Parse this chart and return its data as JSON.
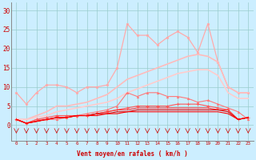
{
  "x": [
    0,
    1,
    2,
    3,
    4,
    5,
    6,
    7,
    8,
    9,
    10,
    11,
    12,
    13,
    14,
    15,
    16,
    17,
    18,
    19,
    20,
    21,
    22,
    23
  ],
  "background_color": "#cceeff",
  "grid_color": "#99cccc",
  "xlabel": "Vent moyen/en rafales ( km/h )",
  "ylabel_ticks": [
    0,
    5,
    10,
    15,
    20,
    25,
    30
  ],
  "ylim": [
    -4,
    32
  ],
  "xlim": [
    -0.5,
    23.5
  ],
  "line1_color": "#ffaaaa",
  "line1_y": [
    8.5,
    5.5,
    8.5,
    10.5,
    10.5,
    10.0,
    8.5,
    10.0,
    10.0,
    10.5,
    15.0,
    26.5,
    23.5,
    23.5,
    21.0,
    23.0,
    24.5,
    23.0,
    19.0,
    26.5,
    16.5,
    10.0,
    8.5,
    8.5
  ],
  "line2_color": "#ffbbbb",
  "line2_y": [
    1.5,
    1.5,
    2.5,
    3.5,
    5.0,
    5.0,
    5.5,
    6.0,
    7.0,
    8.0,
    10.0,
    12.0,
    13.0,
    14.0,
    15.0,
    16.0,
    17.0,
    18.0,
    18.5,
    18.0,
    16.5,
    10.0,
    8.5,
    8.5
  ],
  "line3_color": "#ffcccc",
  "line3_y": [
    1.5,
    1.5,
    2.0,
    2.5,
    3.5,
    4.0,
    4.5,
    5.0,
    5.5,
    6.0,
    7.0,
    8.5,
    9.5,
    10.5,
    11.5,
    12.5,
    13.5,
    14.0,
    14.5,
    14.5,
    13.0,
    8.5,
    7.0,
    7.0
  ],
  "line4_color": "#ff7777",
  "line4_y": [
    1.5,
    0.5,
    1.5,
    1.5,
    1.5,
    2.0,
    2.5,
    3.0,
    3.5,
    4.0,
    5.0,
    8.5,
    7.5,
    8.5,
    8.5,
    7.5,
    7.5,
    7.0,
    6.0,
    6.5,
    5.5,
    4.5,
    3.5,
    1.5
  ],
  "line5_color": "#ff5555",
  "line5_y": [
    1.5,
    0.5,
    1.5,
    2.0,
    2.5,
    2.5,
    2.5,
    2.5,
    3.0,
    3.5,
    4.0,
    4.5,
    5.0,
    5.0,
    5.0,
    5.0,
    5.5,
    5.5,
    5.5,
    5.0,
    4.5,
    4.0,
    1.5,
    2.0
  ],
  "line6_color": "#ff3333",
  "line6_y": [
    1.5,
    0.5,
    1.0,
    1.5,
    2.0,
    2.0,
    2.5,
    2.5,
    3.0,
    3.5,
    4.0,
    4.0,
    4.5,
    4.5,
    4.5,
    4.5,
    4.5,
    4.5,
    4.5,
    4.5,
    4.0,
    4.0,
    1.5,
    2.0
  ],
  "line7_color": "#dd0000",
  "line7_y": [
    1.5,
    0.5,
    1.0,
    1.5,
    2.0,
    2.0,
    2.5,
    2.5,
    3.0,
    3.0,
    3.5,
    3.5,
    4.0,
    4.0,
    4.0,
    4.0,
    4.0,
    4.0,
    4.0,
    4.0,
    4.0,
    3.5,
    1.5,
    2.0
  ],
  "line8_color": "#ff0000",
  "line8_y": [
    1.5,
    0.5,
    1.0,
    1.5,
    2.0,
    2.0,
    2.5,
    2.5,
    2.5,
    3.0,
    3.0,
    3.5,
    3.5,
    3.5,
    3.5,
    3.5,
    3.5,
    3.5,
    3.5,
    3.5,
    3.5,
    3.0,
    1.5,
    2.0
  ],
  "arrow_color": "#cc2222",
  "tick_color": "#cc0000",
  "label_color": "#cc0000",
  "xlabel_fontsize": 5.5,
  "ytick_fontsize": 5.5,
  "xtick_fontsize": 4.2
}
